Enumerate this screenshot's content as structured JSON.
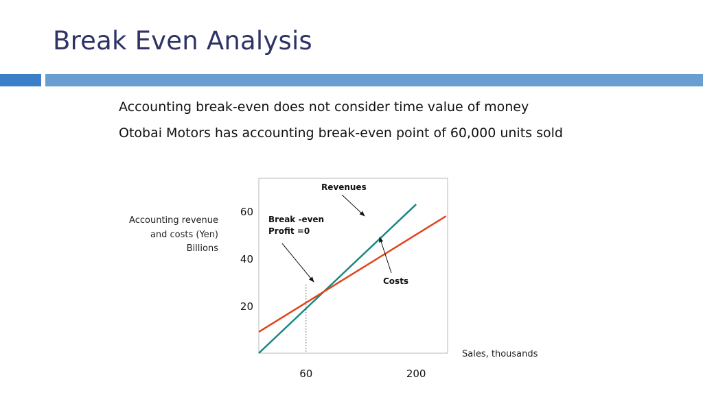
{
  "title": "Break Even Analysis",
  "bullets": [
    "Accounting break-even does not consider time value of money",
    "Otobai Motors has accounting break-even point of 60,000 units sold"
  ],
  "colors": {
    "title": "#2e3366",
    "band_accent": "#3c7fc8",
    "band": "#6a9ed0",
    "revenues": "#16897f",
    "costs": "#e0461c"
  },
  "chart_data": {
    "type": "line",
    "ylabel_lines": [
      "Accounting revenue",
      "and costs (Yen)",
      "Billions"
    ],
    "xlabel": "Sales, thousands",
    "xticks": [
      {
        "value": 60,
        "label": "60"
      },
      {
        "value": 200,
        "label": "200"
      }
    ],
    "yticks": [
      {
        "value": 20,
        "label": "20"
      },
      {
        "value": 40,
        "label": "40"
      },
      {
        "value": 60,
        "label": "60"
      }
    ],
    "xlim": [
      0,
      240
    ],
    "ylim": [
      0,
      74
    ],
    "grid": false,
    "series": [
      {
        "name": "Revenues",
        "color": "#16897f",
        "x": [
          0,
          200
        ],
        "y": [
          0,
          63
        ]
      },
      {
        "name": "Costs",
        "color": "#e0461c",
        "x": [
          0,
          238
        ],
        "y": [
          9,
          58
        ]
      }
    ],
    "break_even": {
      "x": 60,
      "y": 29
    },
    "annotations": [
      {
        "key": "revenues",
        "lines": [
          "Revenues"
        ]
      },
      {
        "key": "breakeven",
        "lines": [
          "Break -even",
          "Profit =0"
        ]
      },
      {
        "key": "costs",
        "lines": [
          "Costs"
        ]
      }
    ]
  }
}
